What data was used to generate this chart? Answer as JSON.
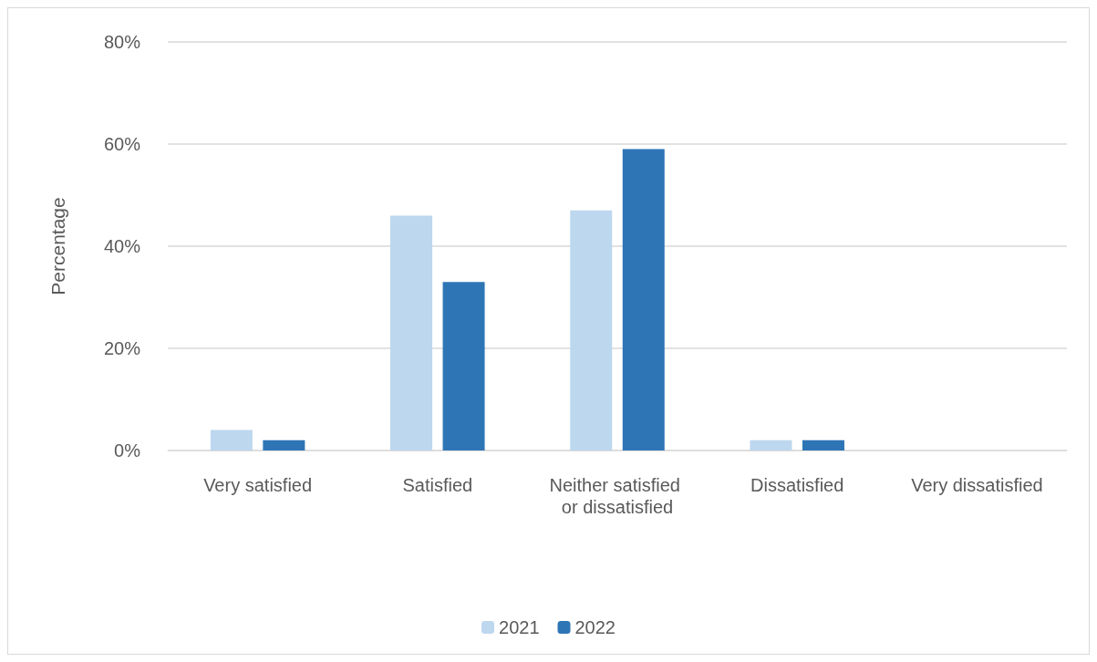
{
  "chart_data": {
    "type": "bar",
    "ylabel": "Percentage",
    "categories": [
      "Very satisfied",
      "Satisfied",
      "Neither satisfied or dissatisfied",
      "Dissatisfied",
      "Very dissatisfied"
    ],
    "series": [
      {
        "name": "2021",
        "color": "#bdd7ee",
        "values": [
          4,
          46,
          47,
          2,
          0
        ]
      },
      {
        "name": "2022",
        "color": "#2e75b6",
        "values": [
          2,
          33,
          59,
          2,
          0
        ]
      }
    ],
    "ylim": [
      0,
      80
    ],
    "yticks": [
      {
        "value": 0,
        "label": "0%"
      },
      {
        "value": 20,
        "label": "20%"
      },
      {
        "value": 40,
        "label": "40%"
      },
      {
        "value": 60,
        "label": "60%"
      },
      {
        "value": 80,
        "label": "80%"
      }
    ],
    "grid": "y",
    "legend": "bottom"
  }
}
